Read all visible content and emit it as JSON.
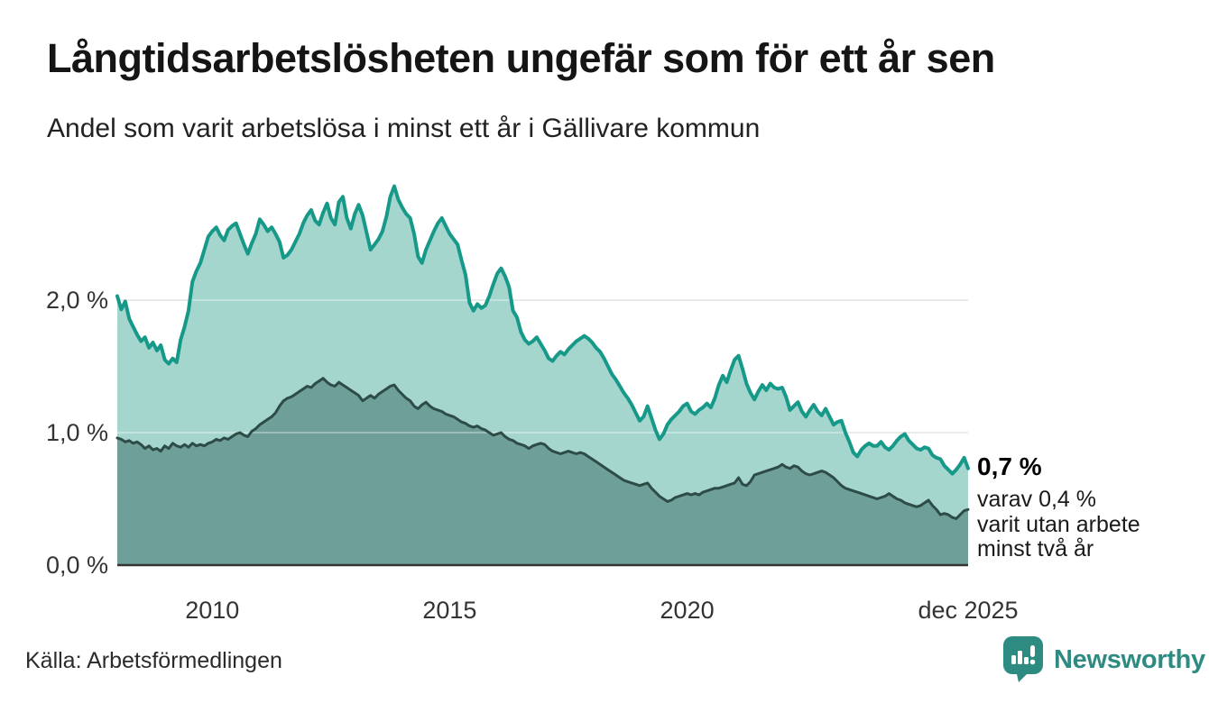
{
  "header": {
    "title": "Långtidsarbetslösheten ungefär som för ett år sen",
    "subtitle": "Andel som varit arbetslösa i minst ett år i Gällivare kommun"
  },
  "footer": {
    "source": "Källa: Arbetsförmedlingen",
    "brand": "Newsworthy",
    "brand_icon": "newsworthy-speech-bubble-chart-icon"
  },
  "colors": {
    "accent_teal": "#17998a",
    "fill_light": "#a5d6ce",
    "line_dark": "#2e4c47",
    "fill_dark": "#6f9f99",
    "grid": "#e0e0e0",
    "axis": "#333333",
    "brand_teal": "#2e8b82"
  },
  "chart_data": {
    "type": "area",
    "title": "Långtidsarbetslösheten ungefär som för ett år sen",
    "subtitle": "Andel som varit arbetslösa i minst ett år i Gällivare kommun",
    "x_start": 2008.0,
    "x_end": 2025.917,
    "x_unit": "year-month",
    "y_unit": "%",
    "ylim": [
      0,
      2.95
    ],
    "grid": true,
    "legend": "none",
    "yticks": [
      {
        "value": 0,
        "label": "0,0 %"
      },
      {
        "value": 1,
        "label": "1,0 %"
      },
      {
        "value": 2,
        "label": "2,0 %"
      }
    ],
    "xticks": [
      {
        "value": 2010,
        "label": "2010"
      },
      {
        "value": 2015,
        "label": "2015"
      },
      {
        "value": 2020,
        "label": "2020"
      },
      {
        "value": 2025.917,
        "label": "dec 2025"
      }
    ],
    "annotation": {
      "value_label": "0,7 %",
      "lines": [
        "varav 0,4 %",
        "varit utan arbete",
        "minst två år"
      ]
    },
    "series": [
      {
        "name": "Andel arbetslösa minst ett år",
        "color": "#17998a",
        "fill": "#a5d6ce",
        "stroke_width": 4,
        "values": [
          2.03,
          1.93,
          1.99,
          1.86,
          1.8,
          1.74,
          1.69,
          1.72,
          1.64,
          1.68,
          1.62,
          1.66,
          1.55,
          1.52,
          1.56,
          1.53,
          1.7,
          1.8,
          1.92,
          2.14,
          2.22,
          2.28,
          2.38,
          2.48,
          2.52,
          2.55,
          2.49,
          2.45,
          2.53,
          2.56,
          2.58,
          2.5,
          2.42,
          2.35,
          2.43,
          2.5,
          2.61,
          2.57,
          2.52,
          2.55,
          2.5,
          2.44,
          2.32,
          2.34,
          2.38,
          2.44,
          2.5,
          2.58,
          2.64,
          2.68,
          2.6,
          2.57,
          2.66,
          2.73,
          2.62,
          2.57,
          2.74,
          2.78,
          2.62,
          2.54,
          2.65,
          2.72,
          2.64,
          2.51,
          2.38,
          2.42,
          2.46,
          2.52,
          2.63,
          2.78,
          2.86,
          2.76,
          2.7,
          2.65,
          2.62,
          2.5,
          2.33,
          2.28,
          2.38,
          2.45,
          2.52,
          2.58,
          2.62,
          2.56,
          2.5,
          2.46,
          2.42,
          2.3,
          2.19,
          1.98,
          1.92,
          1.97,
          1.94,
          1.96,
          2.03,
          2.12,
          2.2,
          2.24,
          2.18,
          2.1,
          1.92,
          1.87,
          1.76,
          1.7,
          1.67,
          1.69,
          1.72,
          1.67,
          1.62,
          1.56,
          1.54,
          1.58,
          1.61,
          1.59,
          1.63,
          1.66,
          1.69,
          1.71,
          1.73,
          1.71,
          1.68,
          1.64,
          1.61,
          1.56,
          1.5,
          1.44,
          1.4,
          1.35,
          1.3,
          1.26,
          1.21,
          1.15,
          1.09,
          1.12,
          1.2,
          1.11,
          1.02,
          0.95,
          0.99,
          1.06,
          1.1,
          1.13,
          1.16,
          1.2,
          1.22,
          1.16,
          1.14,
          1.17,
          1.19,
          1.22,
          1.19,
          1.26,
          1.36,
          1.43,
          1.38,
          1.47,
          1.55,
          1.58,
          1.48,
          1.37,
          1.3,
          1.25,
          1.31,
          1.36,
          1.32,
          1.37,
          1.34,
          1.33,
          1.34,
          1.27,
          1.17,
          1.2,
          1.23,
          1.16,
          1.12,
          1.17,
          1.21,
          1.16,
          1.13,
          1.18,
          1.12,
          1.06,
          1.08,
          1.09,
          1.0,
          0.93,
          0.85,
          0.82,
          0.87,
          0.9,
          0.92,
          0.9,
          0.9,
          0.93,
          0.89,
          0.87,
          0.9,
          0.94,
          0.97,
          0.99,
          0.94,
          0.91,
          0.88,
          0.87,
          0.89,
          0.88,
          0.83,
          0.81,
          0.8,
          0.75,
          0.72,
          0.69,
          0.72,
          0.76,
          0.81,
          0.73
        ]
      },
      {
        "name": "Varav utan arbete minst två år",
        "color": "#2e4c47",
        "fill": "#6f9f99",
        "stroke_width": 3,
        "values": [
          0.96,
          0.95,
          0.93,
          0.94,
          0.92,
          0.93,
          0.91,
          0.88,
          0.9,
          0.87,
          0.88,
          0.86,
          0.9,
          0.88,
          0.92,
          0.9,
          0.89,
          0.91,
          0.89,
          0.92,
          0.9,
          0.91,
          0.9,
          0.92,
          0.93,
          0.95,
          0.94,
          0.96,
          0.95,
          0.97,
          0.99,
          1.0,
          0.98,
          0.97,
          1.01,
          1.03,
          1.06,
          1.08,
          1.1,
          1.12,
          1.15,
          1.2,
          1.24,
          1.26,
          1.27,
          1.29,
          1.31,
          1.33,
          1.35,
          1.34,
          1.37,
          1.39,
          1.41,
          1.38,
          1.36,
          1.35,
          1.38,
          1.36,
          1.34,
          1.32,
          1.3,
          1.28,
          1.24,
          1.26,
          1.28,
          1.26,
          1.29,
          1.31,
          1.33,
          1.35,
          1.36,
          1.32,
          1.29,
          1.26,
          1.24,
          1.2,
          1.18,
          1.21,
          1.23,
          1.2,
          1.18,
          1.17,
          1.16,
          1.14,
          1.13,
          1.12,
          1.1,
          1.08,
          1.07,
          1.05,
          1.04,
          1.05,
          1.03,
          1.02,
          1.0,
          0.98,
          0.99,
          1.0,
          0.97,
          0.95,
          0.94,
          0.92,
          0.91,
          0.9,
          0.88,
          0.9,
          0.91,
          0.92,
          0.91,
          0.88,
          0.86,
          0.85,
          0.84,
          0.85,
          0.86,
          0.85,
          0.84,
          0.85,
          0.84,
          0.82,
          0.8,
          0.78,
          0.76,
          0.74,
          0.72,
          0.7,
          0.68,
          0.66,
          0.64,
          0.63,
          0.62,
          0.61,
          0.6,
          0.61,
          0.62,
          0.58,
          0.55,
          0.52,
          0.5,
          0.48,
          0.49,
          0.51,
          0.52,
          0.53,
          0.54,
          0.53,
          0.54,
          0.53,
          0.55,
          0.56,
          0.57,
          0.58,
          0.58,
          0.59,
          0.6,
          0.61,
          0.62,
          0.66,
          0.61,
          0.6,
          0.63,
          0.68,
          0.69,
          0.7,
          0.71,
          0.72,
          0.73,
          0.74,
          0.76,
          0.74,
          0.73,
          0.75,
          0.74,
          0.71,
          0.69,
          0.68,
          0.69,
          0.7,
          0.71,
          0.7,
          0.68,
          0.66,
          0.63,
          0.6,
          0.58,
          0.57,
          0.56,
          0.55,
          0.54,
          0.53,
          0.52,
          0.51,
          0.5,
          0.51,
          0.52,
          0.54,
          0.52,
          0.5,
          0.49,
          0.47,
          0.46,
          0.45,
          0.44,
          0.45,
          0.47,
          0.49,
          0.45,
          0.42,
          0.38,
          0.39,
          0.38,
          0.36,
          0.35,
          0.38,
          0.41,
          0.42
        ]
      }
    ]
  }
}
